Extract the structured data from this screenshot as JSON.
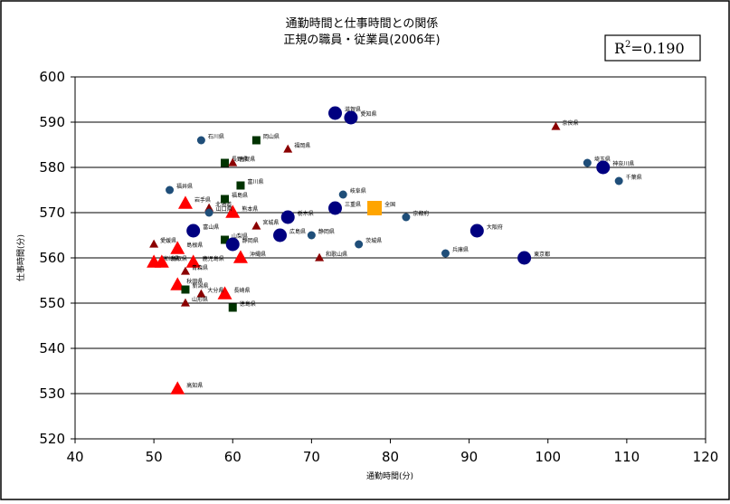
{
  "chart_data": {
    "type": "scatter",
    "title": "通勤時間と仕事時間との関係",
    "subtitle": "正規の職員・従業員(2006年)",
    "xlabel": "通勤時間(分)",
    "ylabel": "仕事時間(分)",
    "xlim": [
      40,
      120
    ],
    "ylim": [
      520,
      600
    ],
    "xticks": [
      40,
      50,
      60,
      70,
      80,
      90,
      100,
      110,
      120
    ],
    "yticks": [
      520,
      530,
      540,
      550,
      560,
      570,
      580,
      590,
      600
    ],
    "r2_label": "R",
    "r2_sup": "2",
    "r2_value": "=0.190",
    "grid": true,
    "colors": {
      "big_navy": "#000080",
      "small_navy": "#1f4e79",
      "dark_green": "#003300",
      "dark_red": "#8b0000",
      "red": "#ff0000",
      "national": "#ffa500"
    },
    "points": [
      {
        "label": "滋賀県",
        "x": 73,
        "y": 592,
        "marker": "big-circle"
      },
      {
        "label": "愛知県",
        "x": 75,
        "y": 591,
        "marker": "big-circle"
      },
      {
        "label": "奈良県",
        "x": 101,
        "y": 589,
        "marker": "small-triangle"
      },
      {
        "label": "石川県",
        "x": 56,
        "y": 586,
        "marker": "small-circle"
      },
      {
        "label": "岡山県",
        "x": 63,
        "y": 586,
        "marker": "square"
      },
      {
        "label": "福岡県",
        "x": 67,
        "y": 584,
        "marker": "small-triangle"
      },
      {
        "label": "長野県",
        "x": 59,
        "y": 581,
        "marker": "square"
      },
      {
        "label": "佐賀県",
        "x": 60,
        "y": 581,
        "marker": "small-triangle"
      },
      {
        "label": "埼玉県",
        "x": 105,
        "y": 581,
        "marker": "small-circle"
      },
      {
        "label": "神奈川県",
        "x": 107,
        "y": 580,
        "marker": "big-circle"
      },
      {
        "label": "千葉県",
        "x": 109,
        "y": 577,
        "marker": "small-circle"
      },
      {
        "label": "福井県",
        "x": 52,
        "y": 575,
        "marker": "small-circle"
      },
      {
        "label": "富川県",
        "x": 61,
        "y": 576,
        "marker": "square"
      },
      {
        "label": "岐阜県",
        "x": 74,
        "y": 574,
        "marker": "small-circle"
      },
      {
        "label": "北海道",
        "x": 57,
        "y": 571,
        "marker": "small-triangle"
      },
      {
        "label": "福島県",
        "x": 59,
        "y": 573,
        "marker": "square"
      },
      {
        "label": "岩手県",
        "x": 54,
        "y": 572,
        "marker": "big-triangle"
      },
      {
        "label": "熊本県",
        "x": 60,
        "y": 570,
        "marker": "big-triangle"
      },
      {
        "label": "山口県",
        "x": 57,
        "y": 570,
        "marker": "small-circle"
      },
      {
        "label": "三重県",
        "x": 73,
        "y": 571,
        "marker": "big-circle"
      },
      {
        "label": "全国",
        "x": 78,
        "y": 571,
        "marker": "national"
      },
      {
        "label": "京都府",
        "x": 82,
        "y": 569,
        "marker": "small-circle"
      },
      {
        "label": "栃木県",
        "x": 67,
        "y": 569,
        "marker": "big-circle"
      },
      {
        "label": "宮城県",
        "x": 63,
        "y": 567,
        "marker": "small-triangle"
      },
      {
        "label": "富山県",
        "x": 55,
        "y": 566,
        "marker": "big-circle"
      },
      {
        "label": "大阪府",
        "x": 91,
        "y": 566,
        "marker": "big-circle"
      },
      {
        "label": "静岡県",
        "x": 70,
        "y": 565,
        "marker": "small-circle"
      },
      {
        "label": "広島県",
        "x": 66,
        "y": 565,
        "marker": "big-circle"
      },
      {
        "label": "山梨県",
        "x": 59,
        "y": 564,
        "marker": "square"
      },
      {
        "label": "静岡県",
        "x": 60,
        "y": 563,
        "marker": "big-circle"
      },
      {
        "label": "愛媛県",
        "x": 50,
        "y": 563,
        "marker": "small-triangle"
      },
      {
        "label": "茨城県",
        "x": 76,
        "y": 563,
        "marker": "small-circle"
      },
      {
        "label": "島根県",
        "x": 53,
        "y": 562,
        "marker": "big-triangle"
      },
      {
        "label": "兵庫県",
        "x": 87,
        "y": 561,
        "marker": "small-circle"
      },
      {
        "label": "東京都",
        "x": 97,
        "y": 560,
        "marker": "big-circle"
      },
      {
        "label": "沖縄県",
        "x": 61,
        "y": 560,
        "marker": "big-triangle"
      },
      {
        "label": "和歌山県",
        "x": 71,
        "y": 560,
        "marker": "small-triangle"
      },
      {
        "label": "宮崎県",
        "x": 50,
        "y": 559,
        "marker": "big-triangle"
      },
      {
        "label": "鹿児島県",
        "x": 55,
        "y": 559,
        "marker": "big-triangle"
      },
      {
        "label": "鳥取県",
        "x": 51,
        "y": 559,
        "marker": "big-triangle"
      },
      {
        "label": "青森県",
        "x": 54,
        "y": 557,
        "marker": "small-triangle"
      },
      {
        "label": "秋田県",
        "x": 53,
        "y": 554,
        "marker": "big-triangle"
      },
      {
        "label": "新潟県",
        "x": 54,
        "y": 553,
        "marker": "square"
      },
      {
        "label": "長崎県",
        "x": 59,
        "y": 552,
        "marker": "big-triangle"
      },
      {
        "label": "大分県",
        "x": 56,
        "y": 552,
        "marker": "small-triangle"
      },
      {
        "label": "山形県",
        "x": 54,
        "y": 550,
        "marker": "small-triangle"
      },
      {
        "label": "徳島県",
        "x": 60,
        "y": 549,
        "marker": "square"
      },
      {
        "label": "高知県",
        "x": 53,
        "y": 531,
        "marker": "big-triangle"
      }
    ]
  }
}
